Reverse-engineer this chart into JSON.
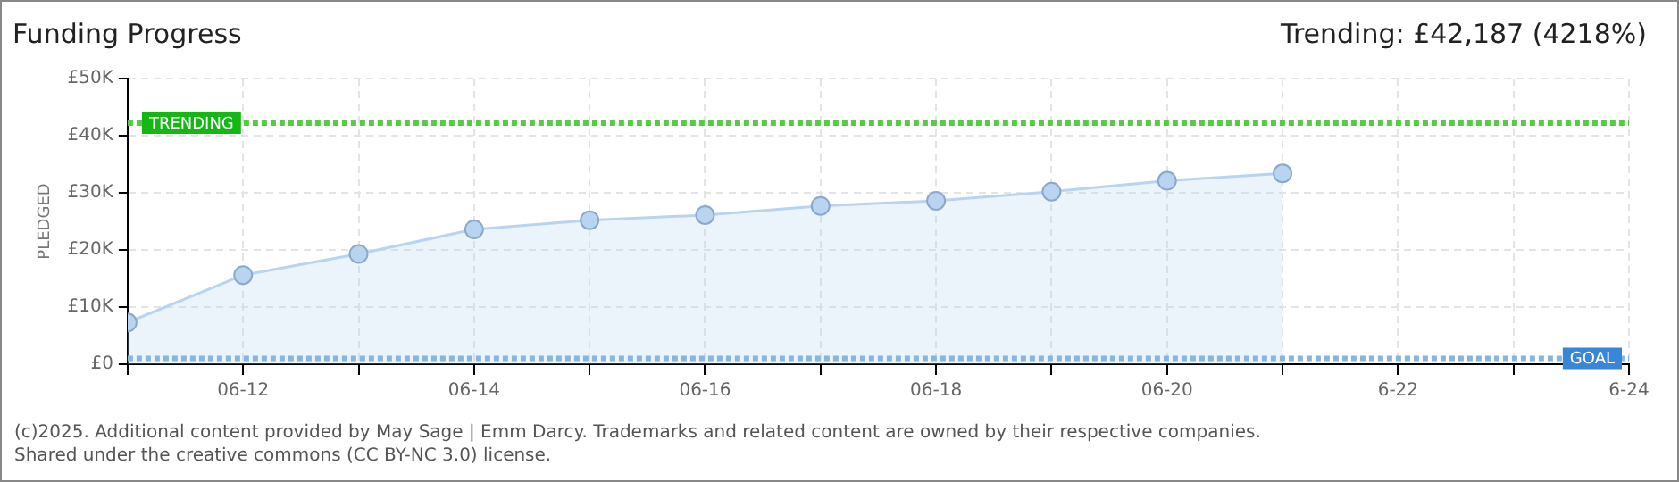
{
  "chart_data": {
    "type": "area",
    "title": "Funding Progress",
    "subtitle": "Trending:  £42,187 (4218%)",
    "ylabel": "PLEDGED",
    "annotations": [
      "(c)2025. Additional content provided by May Sage | Emm Darcy. Trademarks and related content are owned by their respective companies.",
      "Shared under the creative commons (CC BY-NC 3.0) license."
    ],
    "x": [
      "--06-11",
      "--06-12",
      "--06-13",
      "--06-14",
      "--06-15",
      "--06-16",
      "--06-17",
      "--06-18",
      "--06-19",
      "--06-20",
      "--06-21"
    ],
    "series": [
      {
        "color": "#b8d4f0",
        "values": [
          7300,
          15600,
          19300,
          23600,
          25200,
          26100,
          27700,
          28600,
          30200,
          32100,
          33400
        ]
      }
    ],
    "xlim": [
      "--06-11",
      "--06-24"
    ],
    "xticks": [
      {
        "value": "--06-11",
        "label": null
      },
      {
        "value": "--06-12",
        "label": "06-12"
      },
      {
        "value": "--06-13",
        "label": null
      },
      {
        "value": "--06-14",
        "label": "06-14"
      },
      {
        "value": "--06-15",
        "label": null
      },
      {
        "value": "--06-16",
        "label": "06-16"
      },
      {
        "value": "--06-17",
        "label": null
      },
      {
        "value": "--06-18",
        "label": "06-18"
      },
      {
        "value": "--06-19",
        "label": null
      },
      {
        "value": "--06-20",
        "label": "06-20"
      },
      {
        "value": "--06-21",
        "label": null
      },
      {
        "value": "--06-22",
        "label": "6-22"
      },
      {
        "value": "--06-23",
        "label": null
      },
      {
        "value": "--06-24",
        "label": "6-24"
      }
    ],
    "ylim": [
      0,
      50000
    ],
    "yticks": [
      {
        "value": 0,
        "label": "£0"
      },
      {
        "value": 10000,
        "label": "£10K"
      },
      {
        "value": 20000,
        "label": "£20K"
      },
      {
        "value": 30000,
        "label": "£30K"
      },
      {
        "value": 40000,
        "label": "£40K"
      },
      {
        "value": 50000,
        "label": "£50K"
      }
    ],
    "ref_lines": [
      {
        "axis": "y",
        "value": 42187,
        "label": "TRENDING",
        "color": "#55cc44",
        "line_style": "dotted"
      },
      {
        "axis": "y",
        "value": 1000,
        "label": "GOAL",
        "color": "#88b4e0",
        "line_style": "dotted"
      }
    ],
    "grid": true,
    "marker": "circle",
    "legend": false
  }
}
